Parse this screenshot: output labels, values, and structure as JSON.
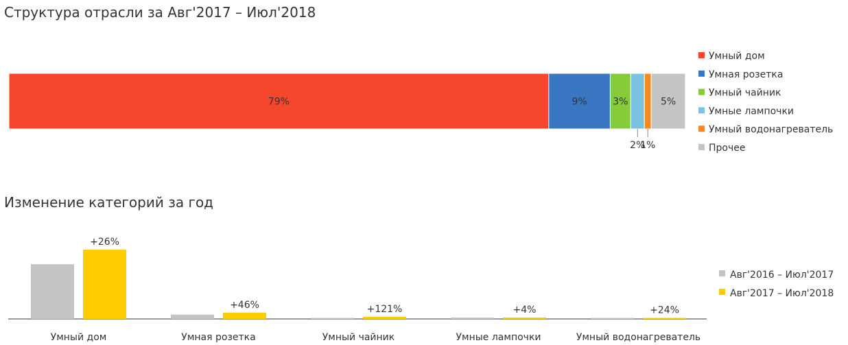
{
  "chart_data": [
    {
      "type": "bar",
      "orientation": "horizontal-stacked",
      "title": "Структура отрасли за Авг'2017 – Июл'2018",
      "unit": "%",
      "series": [
        {
          "name": "Умный дом",
          "value": 79,
          "label": "79%",
          "color": "#f4472c"
        },
        {
          "name": "Умная розетка",
          "value": 9,
          "label": "9%",
          "color": "#3a77c2"
        },
        {
          "name": "Умный чайник",
          "value": 3,
          "label": "3%",
          "color": "#86cc3a"
        },
        {
          "name": "Умные лампочки",
          "value": 2,
          "label": "2%",
          "color": "#79c2e0"
        },
        {
          "name": "Умный водонагреватель",
          "value": 1,
          "label": "1%",
          "color": "#f7891f"
        },
        {
          "name": "Прочее",
          "value": 5,
          "label": "5%",
          "color": "#c4c4c4"
        }
      ],
      "legend": "right"
    },
    {
      "type": "bar",
      "title": "Изменение категорий за год",
      "categories": [
        "Умный дом",
        "Умная розетка",
        "Умный чайник",
        "Умные лампочки",
        "Умный водонагреватель"
      ],
      "series": [
        {
          "name": "Авг'2016 – Июл'2017",
          "color": "#c4c4c4",
          "values": [
            79,
            6.2,
            1.4,
            1.9,
            0.8
          ]
        },
        {
          "name": "Авг'2017 – Июл'2018",
          "color": "#ffcc00",
          "values": [
            100,
            9.0,
            3.1,
            2.0,
            1.0
          ]
        }
      ],
      "growth_labels": [
        "+26%",
        "+46%",
        "+121%",
        "+4%",
        "+24%"
      ],
      "legend": "right"
    }
  ]
}
